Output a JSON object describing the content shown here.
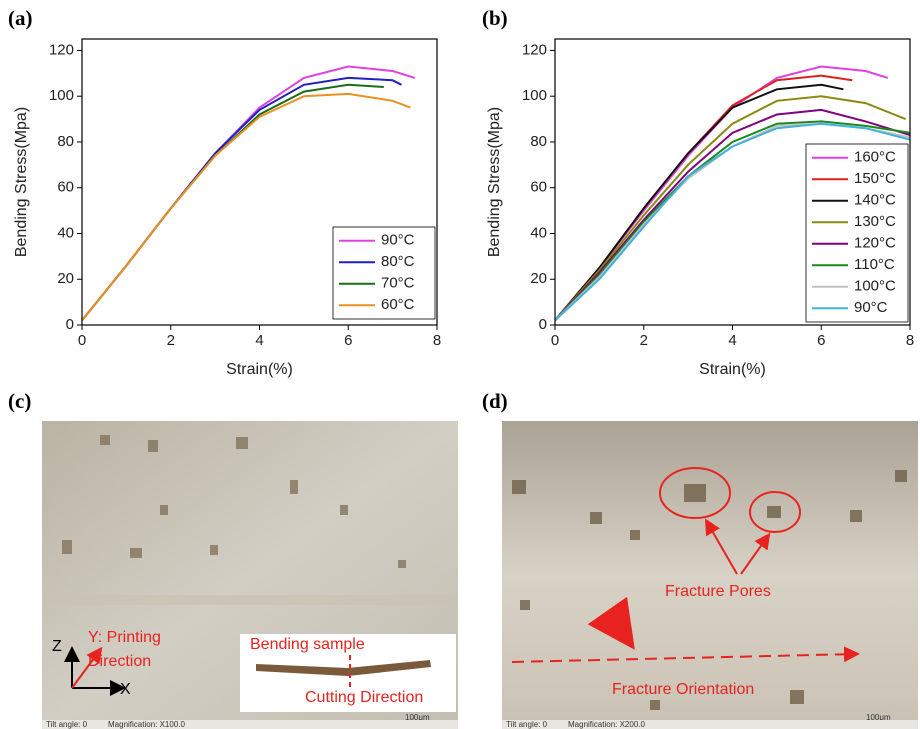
{
  "chart_data": [
    {
      "type": "line",
      "panel_label": "(a)",
      "xlabel": "Strain(%)",
      "ylabel": "Bending Stress(Mpa)",
      "xlim": [
        0,
        8
      ],
      "ylim": [
        0,
        125
      ],
      "xticks": [
        0,
        2,
        4,
        6,
        8
      ],
      "yticks": [
        0,
        20,
        40,
        60,
        80,
        100,
        120
      ],
      "legend": "lower right",
      "series": [
        {
          "name": "90°C",
          "color": "#e040e0",
          "x": [
            0,
            1,
            2,
            3,
            4,
            5,
            6,
            7,
            7.5
          ],
          "values": [
            2,
            26,
            51,
            75,
            95,
            108,
            113,
            111,
            108
          ]
        },
        {
          "name": "80°C",
          "color": "#2020c0",
          "x": [
            0,
            1,
            2,
            3,
            4,
            5,
            6,
            7,
            7.2
          ],
          "values": [
            2,
            26,
            51,
            75,
            94,
            105,
            108,
            107,
            105
          ]
        },
        {
          "name": "70°C",
          "color": "#1a6e1a",
          "x": [
            0,
            1,
            2,
            3,
            4,
            5,
            6,
            6.8
          ],
          "values": [
            2,
            26,
            51,
            74,
            92,
            102,
            105,
            104
          ]
        },
        {
          "name": "60°C",
          "color": "#e89020",
          "x": [
            0,
            1,
            2,
            3,
            4,
            5,
            6,
            7,
            7.4
          ],
          "values": [
            2,
            26,
            51,
            74,
            91,
            100,
            101,
            98,
            95
          ]
        }
      ]
    },
    {
      "type": "line",
      "panel_label": "(b)",
      "xlabel": "Strain(%)",
      "ylabel": "Bending Stress(Mpa)",
      "xlim": [
        0,
        8
      ],
      "ylim": [
        0,
        125
      ],
      "xticks": [
        0,
        2,
        4,
        6,
        8
      ],
      "yticks": [
        0,
        20,
        40,
        60,
        80,
        100,
        120
      ],
      "legend": "center right",
      "series": [
        {
          "name": "160°C",
          "color": "#e040e0",
          "x": [
            0,
            1,
            2,
            3,
            4,
            5,
            6,
            7,
            7.5
          ],
          "values": [
            2,
            25,
            50,
            74,
            95,
            108,
            113,
            111,
            108
          ]
        },
        {
          "name": "150°C",
          "color": "#e02020",
          "x": [
            0,
            1,
            2,
            3,
            4,
            5,
            6,
            6.7
          ],
          "values": [
            2,
            25,
            51,
            75,
            96,
            107,
            109,
            107
          ]
        },
        {
          "name": "140°C",
          "color": "#111111",
          "x": [
            0,
            1,
            2,
            3,
            4,
            5,
            6,
            6.5
          ],
          "values": [
            2,
            25,
            51,
            75,
            95,
            103,
            105,
            103
          ]
        },
        {
          "name": "130°C",
          "color": "#8a8a10",
          "x": [
            0,
            1,
            2,
            3,
            4,
            5,
            6,
            7,
            7.9
          ],
          "values": [
            2,
            24,
            48,
            70,
            88,
            98,
            100,
            97,
            90
          ]
        },
        {
          "name": "120°C",
          "color": "#800080",
          "x": [
            0,
            1,
            2,
            3,
            4,
            5,
            6,
            7,
            8
          ],
          "values": [
            2,
            23,
            46,
            67,
            84,
            92,
            94,
            89,
            83
          ]
        },
        {
          "name": "110°C",
          "color": "#1a8a1a",
          "x": [
            0,
            1,
            2,
            3,
            4,
            5,
            6,
            7,
            8
          ],
          "values": [
            2,
            22,
            45,
            65,
            80,
            88,
            89,
            87,
            84
          ]
        },
        {
          "name": "100°C",
          "color": "#c0c0c0",
          "x": [
            0,
            1,
            2,
            3,
            4,
            5,
            6,
            7,
            8
          ],
          "values": [
            2,
            21,
            44,
            64,
            78,
            87,
            88,
            86,
            82
          ]
        },
        {
          "name": "90°C",
          "color": "#40b0e0",
          "x": [
            0,
            1,
            2,
            3,
            4,
            5,
            6,
            7,
            8
          ],
          "values": [
            2,
            20,
            43,
            65,
            78,
            86,
            88,
            86,
            81
          ]
        }
      ]
    }
  ],
  "photos": [
    {
      "panel_label": "(c)",
      "axis_z": "Z",
      "axis_x": "X",
      "direction_line1": "Y: Printing",
      "direction_line2": "Direction",
      "inset_title": "Bending sample",
      "inset_caption": "Cutting Direction",
      "scale": "100μm",
      "tilt": "Tilt angle: 0",
      "magnification": "Magnification: X100.0"
    },
    {
      "panel_label": "(d)",
      "pores": "Fracture Pores",
      "orientation": "Fracture Orientation",
      "scale": "100μm",
      "tilt": "Tilt angle: 0",
      "magnification": "Magnification: X200.0"
    }
  ]
}
